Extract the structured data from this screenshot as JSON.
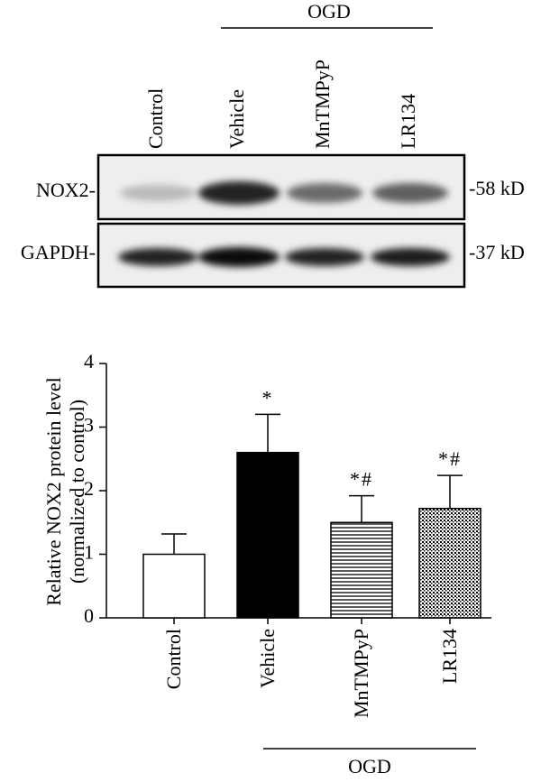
{
  "blot": {
    "lanes": [
      "Control",
      "Vehicle",
      "MnTMPyP",
      "LR134"
    ],
    "group": "OGD",
    "rows": [
      {
        "label": "NOX2-",
        "size": "-58 kD"
      },
      {
        "label": "GAPDH-",
        "size": "-37 kD"
      }
    ]
  },
  "chart_data": {
    "type": "bar",
    "y_label": [
      "Relative NOX2 protein level",
      "(normalized to control)"
    ],
    "categories": [
      "Control",
      "Vehicle",
      "MnTMPyP",
      "LR134"
    ],
    "values": [
      1.0,
      2.6,
      1.5,
      1.72
    ],
    "errors": [
      0.32,
      0.6,
      0.42,
      0.52
    ],
    "annotations": [
      null,
      "*",
      "*#",
      "*#"
    ],
    "fills": [
      "white",
      "black",
      "horizontal-lines",
      "dots"
    ],
    "group": "OGD",
    "ylim": [
      0,
      4
    ],
    "yticks": [
      0,
      1,
      2,
      3,
      4
    ]
  }
}
